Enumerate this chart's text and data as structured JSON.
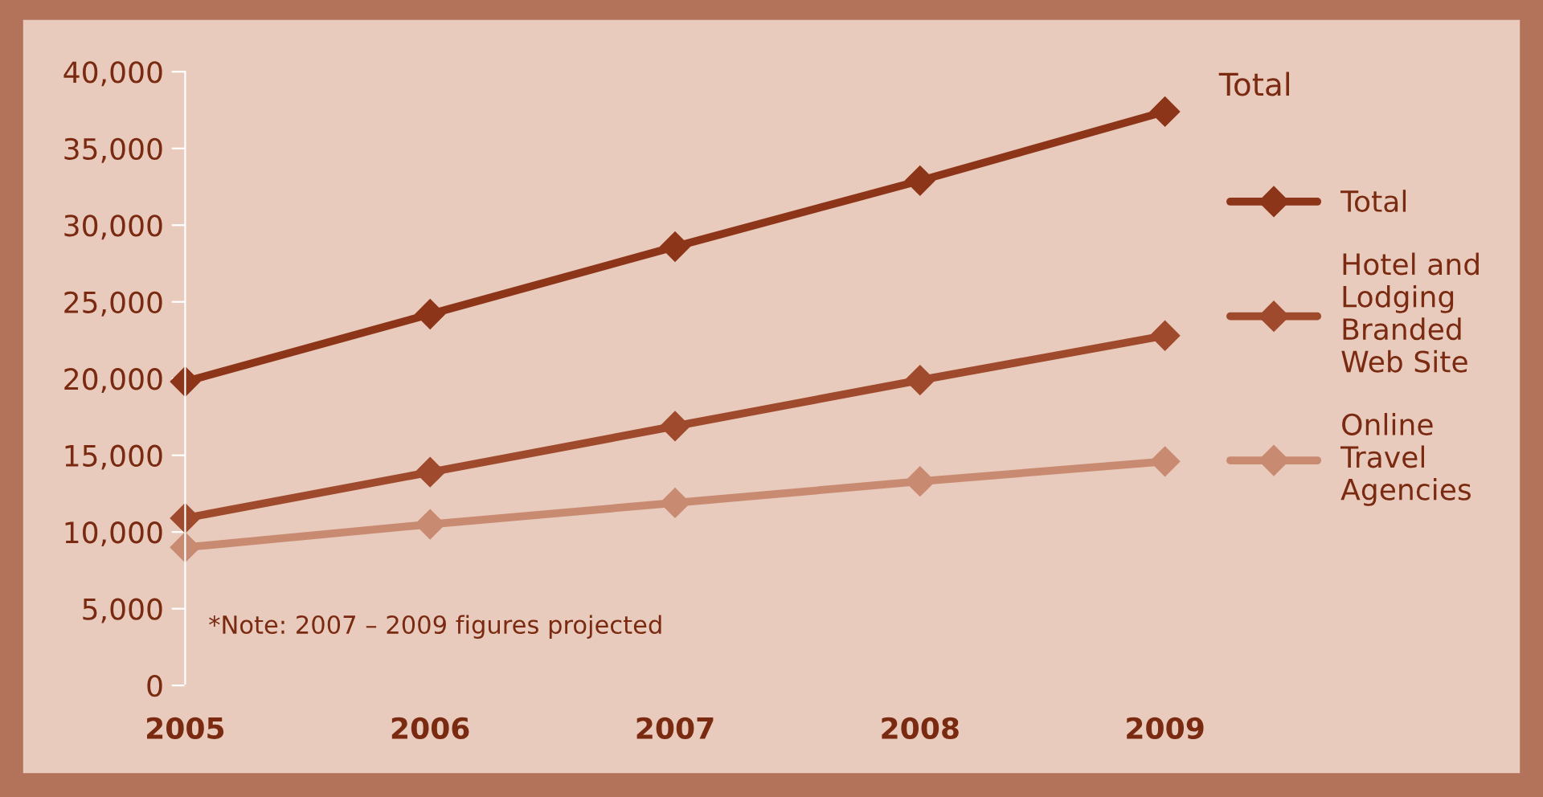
{
  "chart_data": {
    "type": "line",
    "x": [
      2005,
      2006,
      2007,
      2008,
      2009
    ],
    "series": [
      {
        "name": "Total",
        "color": "#8c3518",
        "values": [
          19800,
          24200,
          28600,
          32900,
          37400
        ]
      },
      {
        "name": "Hotel and Lodging Branded Web Site",
        "color": "#9f4a2c",
        "values": [
          10900,
          13900,
          16900,
          19900,
          22800
        ]
      },
      {
        "name": "Online Travel Agencies",
        "color": "#c98a72",
        "values": [
          9000,
          10500,
          11900,
          13300,
          14600
        ]
      }
    ],
    "xlim": [
      2005,
      2009
    ],
    "xticks": [
      2005,
      2006,
      2007,
      2008,
      2009
    ],
    "ylim": [
      0,
      40000
    ],
    "yticks": [
      {
        "value": 0,
        "label": "0"
      },
      {
        "value": 5000,
        "label": "5,000"
      },
      {
        "value": 10000,
        "label": "10,000"
      },
      {
        "value": 15000,
        "label": "15,000"
      },
      {
        "value": 20000,
        "label": "20,000"
      },
      {
        "value": 25000,
        "label": "25,000"
      },
      {
        "value": 30000,
        "label": "30,000"
      },
      {
        "value": 35000,
        "label": "35,000"
      },
      {
        "value": 40000,
        "label": "40,000"
      }
    ],
    "annotations": [
      "Total",
      "*Note: 2007 – 2009 figures projected"
    ],
    "grid": false,
    "legend": "right",
    "marker": "diamond",
    "line_style": "solid"
  }
}
